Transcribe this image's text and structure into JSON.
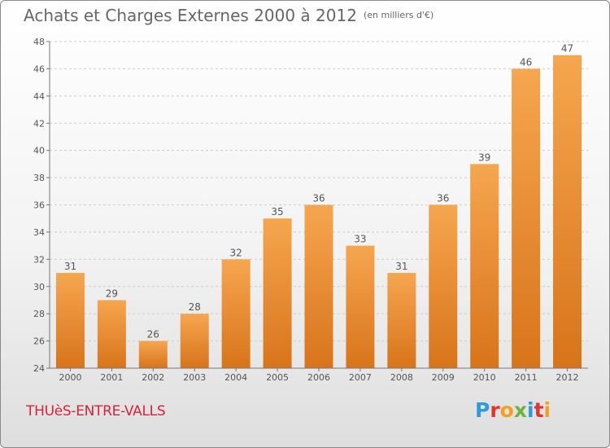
{
  "header": {
    "title": "Achats et Charges Externes 2000 à 2012",
    "unit": "(en milliers d'€)"
  },
  "footer": {
    "place": "THUèS-ENTRE-VALLS",
    "logo": "Proxiti"
  },
  "colors": {
    "bar_top": "#f6a650",
    "bar_bottom": "#d8741a",
    "text": "#555555",
    "grid": "#cccccc",
    "place": "#d4243a"
  },
  "chart_data": {
    "type": "bar",
    "title": "Achats et Charges Externes 2000 à 2012",
    "subtitle": "(en milliers d'€)",
    "categories": [
      "2000",
      "2001",
      "2002",
      "2003",
      "2004",
      "2005",
      "2006",
      "2007",
      "2008",
      "2009",
      "2010",
      "2011",
      "2012"
    ],
    "values": [
      31,
      29,
      26,
      28,
      32,
      35,
      36,
      33,
      31,
      36,
      39,
      46,
      47
    ],
    "xlabel": "",
    "ylabel": "",
    "ylim": [
      24,
      48
    ],
    "yticks": [
      24,
      26,
      28,
      30,
      32,
      34,
      36,
      38,
      40,
      42,
      44,
      46,
      48
    ],
    "grid": true,
    "data_labels": true
  }
}
